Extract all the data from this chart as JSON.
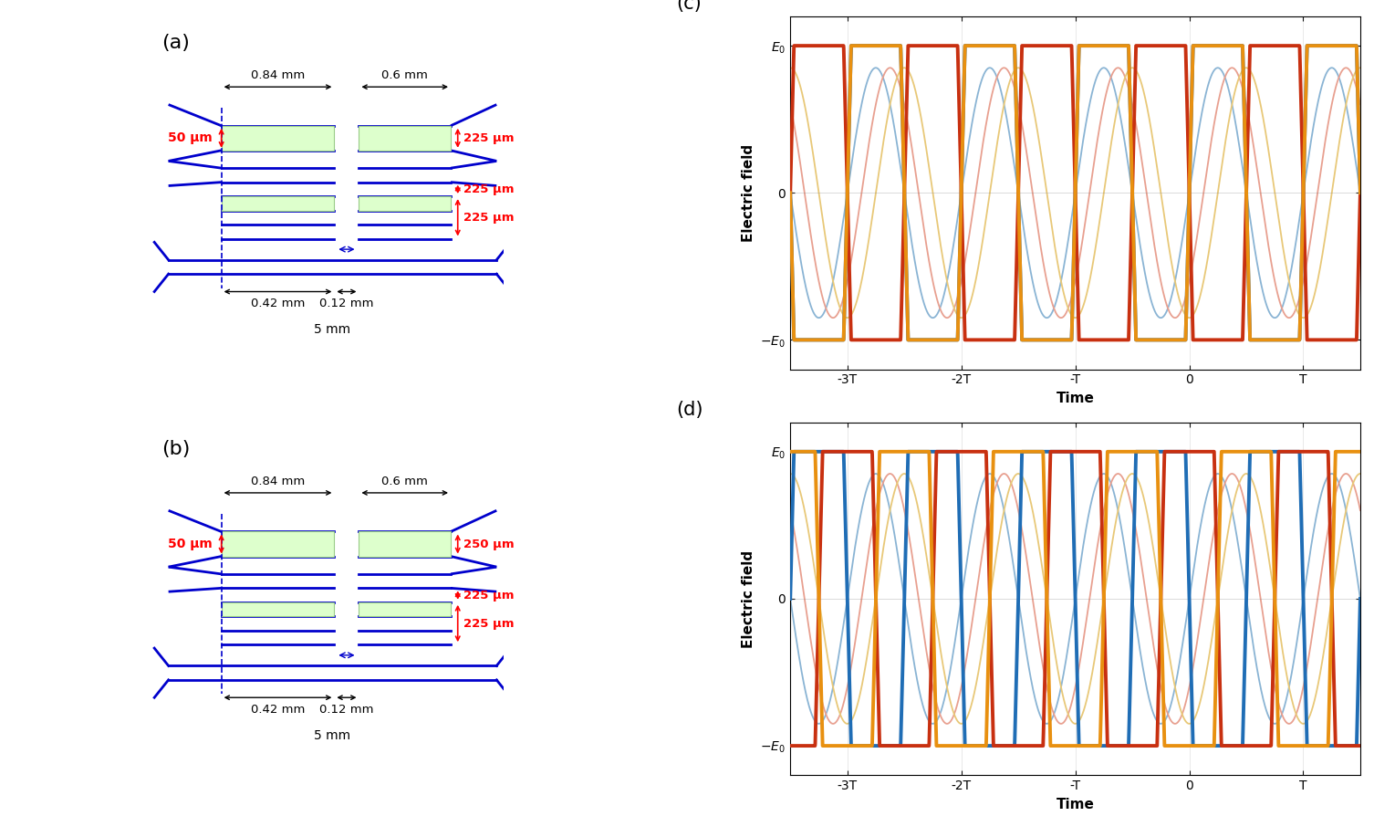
{
  "blue": "#0000CC",
  "green_fill": "#DDFFCC",
  "green_edge": "#99CC88",
  "panel_a_right_dims": [
    "225 μm",
    "225 μm",
    "225 μm"
  ],
  "panel_b_right_dims": [
    "250 μm",
    "225 μm",
    "225 μm"
  ],
  "thin_blue": "#8ab4d4",
  "thin_red": "#e8a090",
  "thin_orange": "#e8c878",
  "thick_blue": "#1f6db5",
  "thick_red": "#c83010",
  "thick_orange": "#e89010",
  "fig_bg": "#ffffff"
}
